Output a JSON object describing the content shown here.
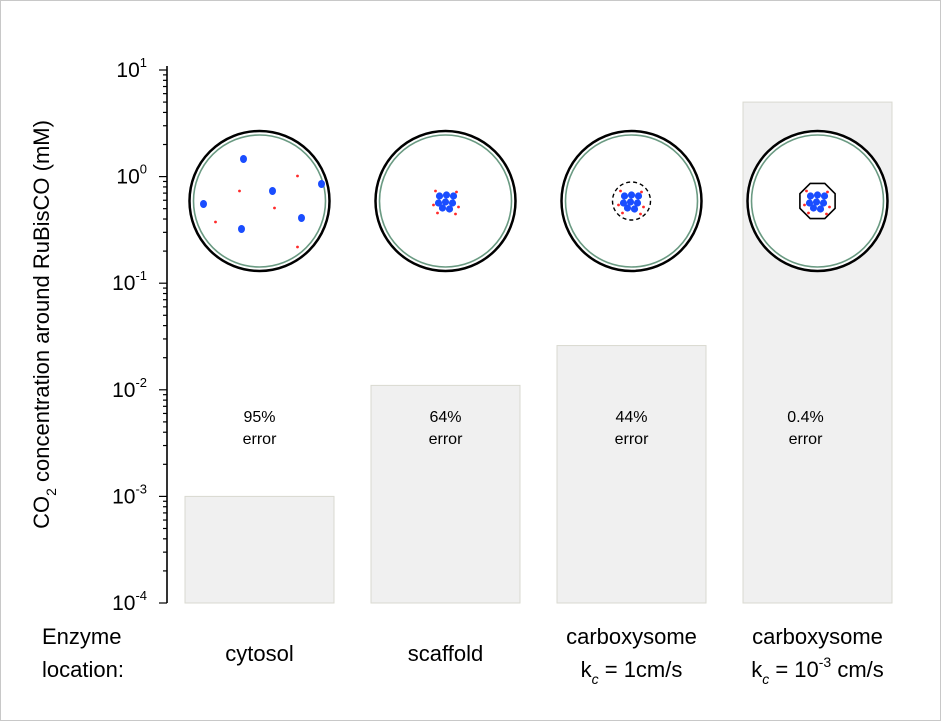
{
  "chart_data": {
    "type": "bar",
    "title": "",
    "ylabel": {
      "prefix": "CO",
      "subscript": "2",
      "rest": " concentration around RuBisCO (mM)"
    },
    "yscale": "log",
    "ylim": [
      0.0001,
      10
    ],
    "yticks": [
      {
        "base": "10",
        "exp": "-4"
      },
      {
        "base": "10",
        "exp": "-3"
      },
      {
        "base": "10",
        "exp": "-2"
      },
      {
        "base": "10",
        "exp": "-1"
      },
      {
        "base": "10",
        "exp": "0"
      },
      {
        "base": "10",
        "exp": "1"
      }
    ],
    "xlabel": {
      "line1": "Enzyme",
      "line2": "location:"
    },
    "categories": [
      {
        "line1": "cytosol",
        "line2": null,
        "value": 0.001,
        "annotation": [
          "95%",
          "error"
        ],
        "inset": "dispersed"
      },
      {
        "line1": "scaffold",
        "line2": null,
        "value": 0.011,
        "annotation": [
          "64%",
          "error"
        ],
        "inset": "clustered"
      },
      {
        "line1": "carboxysome",
        "line2": {
          "k": "k",
          "sub": "c",
          "eq": " = 1cm/s",
          "exp": null,
          "unit": null
        },
        "value": 0.026,
        "annotation": [
          "44%",
          "error"
        ],
        "inset": "leaky-shell"
      },
      {
        "line1": "carboxysome",
        "line2": {
          "k": "k",
          "sub": "c",
          "eq": " = 10",
          "exp": "-3",
          "unit": " cm/s"
        },
        "value": 5,
        "annotation": [
          "0.4%",
          "error"
        ],
        "inset": "tight-shell"
      }
    ],
    "grid": false,
    "legend": "none",
    "colors": {
      "bar_fill": "#f0f0f0",
      "bar_edge": "#d9d9d0",
      "rubisco": "#1a4dff",
      "carbonic_anhydrase": "#ff2a2a",
      "cell_membrane": "#6a9a82"
    }
  }
}
